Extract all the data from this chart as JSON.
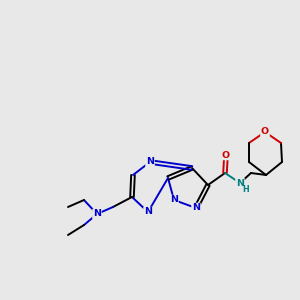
{
  "bg_color": "#e8e8e8",
  "bond_color": "#000000",
  "n_color": "#0000cc",
  "o_color": "#cc0000",
  "nh_color": "#008080",
  "lw": 1.4,
  "dbo": 0.06,
  "fs": 6.8,
  "xlim": [
    0,
    10
  ],
  "ylim": [
    0,
    10
  ]
}
